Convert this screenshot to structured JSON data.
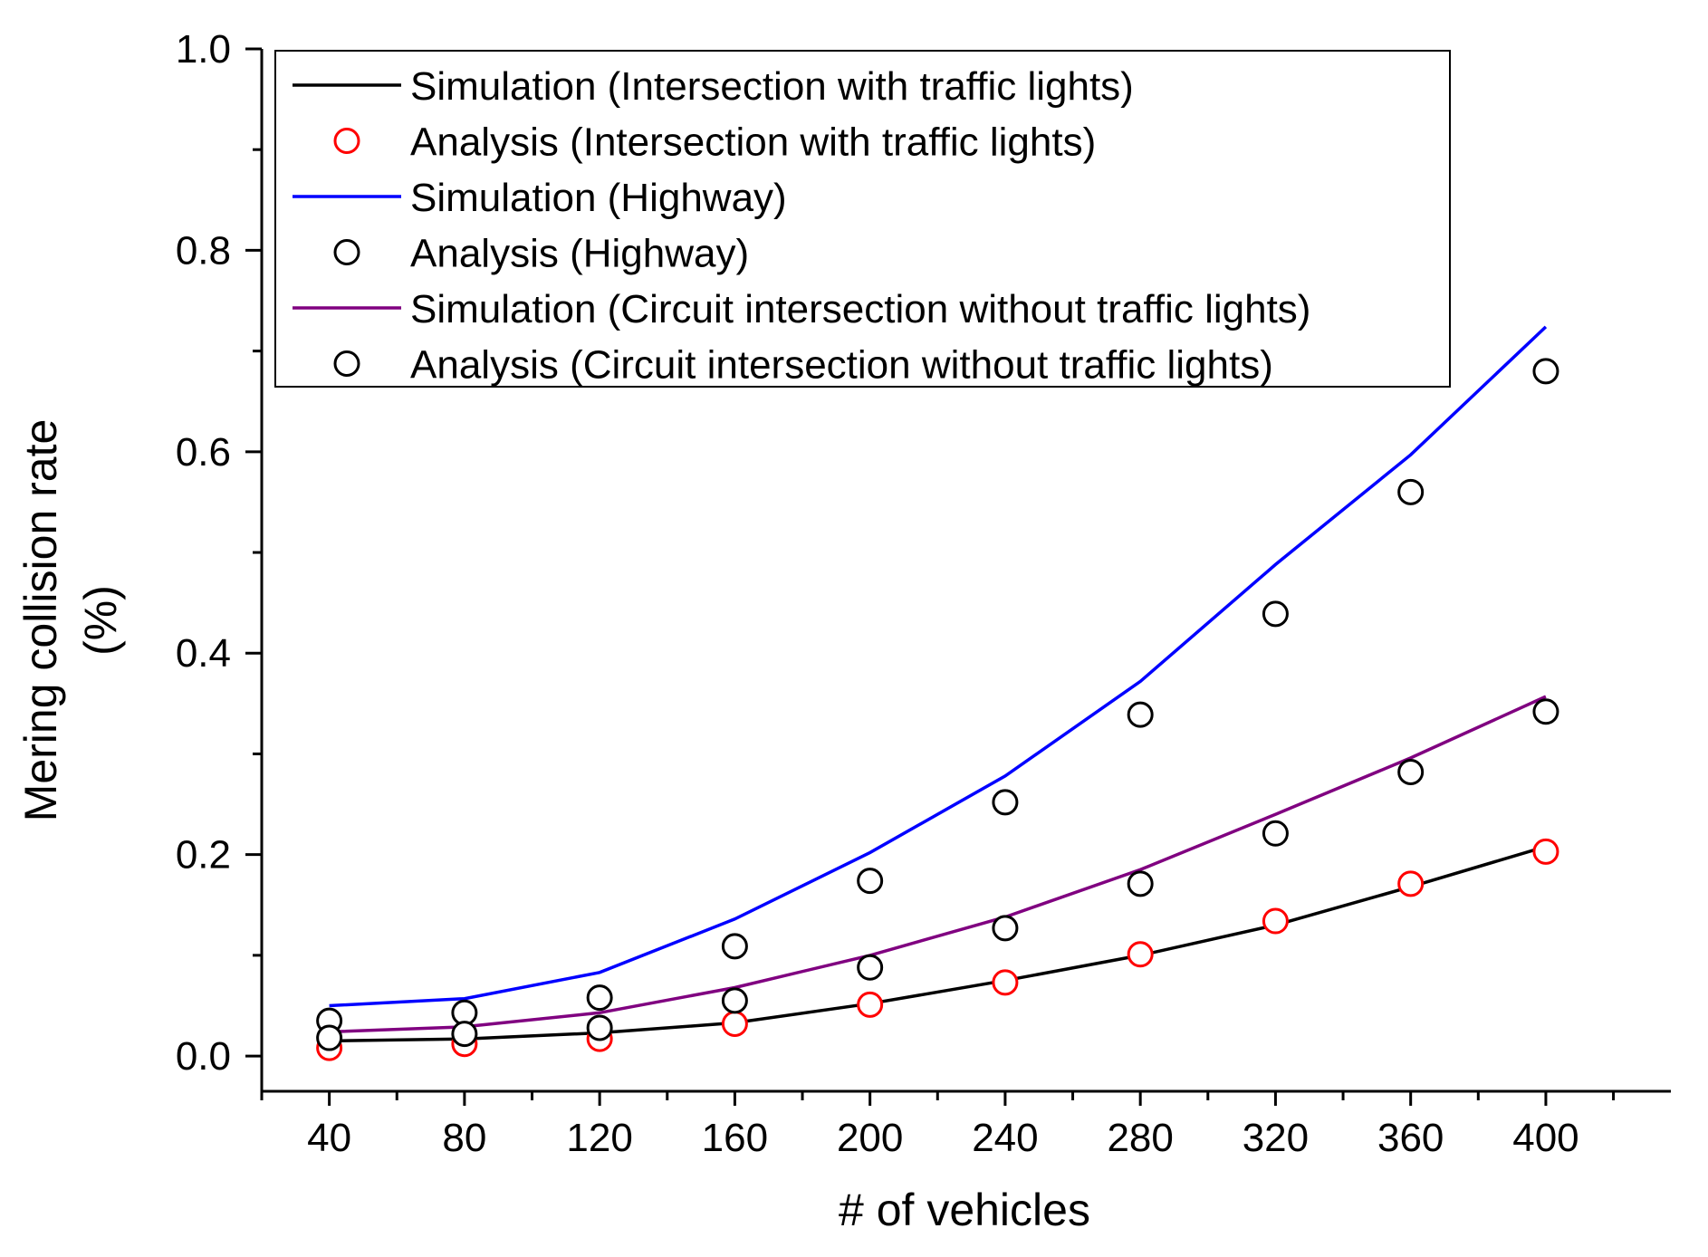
{
  "chart_data": {
    "type": "line",
    "title": "",
    "xlabel": "# of vehicles",
    "ylabel_line1": "Mering collision rate",
    "ylabel_line2": "(%)",
    "xlim": [
      20,
      437
    ],
    "ylim": [
      -0.035,
      1.0
    ],
    "x_ticks": [
      40,
      80,
      120,
      160,
      200,
      240,
      280,
      320,
      360,
      400
    ],
    "x_tick_labels": [
      "40",
      "80",
      "120",
      "160",
      "200",
      "240",
      "280",
      "320",
      "360",
      "400"
    ],
    "y_ticks": [
      0.0,
      0.2,
      0.4,
      0.6,
      0.8,
      1.0
    ],
    "y_tick_labels": [
      "0.0",
      "0.2",
      "0.4",
      "0.6",
      "0.8",
      "1.0"
    ],
    "grid": false,
    "legend_position": "top",
    "x": [
      40,
      80,
      120,
      160,
      200,
      240,
      280,
      320,
      360,
      400
    ],
    "series": [
      {
        "name": "Simulation (Intersection with traffic lights)",
        "kind": "line",
        "color": "#000000",
        "values": [
          0.015,
          0.017,
          0.023,
          0.033,
          0.052,
          0.075,
          0.1,
          0.13,
          0.168,
          0.208
        ]
      },
      {
        "name": "Analysis (Intersection with traffic lights)",
        "kind": "marker",
        "color": "#ff0000",
        "values": [
          0.008,
          0.012,
          0.017,
          0.032,
          0.051,
          0.073,
          0.101,
          0.134,
          0.171,
          0.203
        ]
      },
      {
        "name": "Simulation (Highway)",
        "kind": "line",
        "color": "#0000ff",
        "values": [
          0.05,
          0.057,
          0.083,
          0.136,
          0.202,
          0.278,
          0.372,
          0.488,
          0.597,
          0.724
        ]
      },
      {
        "name": "Analysis (Highway)",
        "kind": "marker",
        "color": "#000000",
        "values": [
          0.035,
          0.043,
          0.058,
          0.109,
          0.174,
          0.252,
          0.339,
          0.439,
          0.56,
          0.68
        ]
      },
      {
        "name": "Simulation (Circuit intersection without traffic lights)",
        "kind": "line",
        "color": "#800080",
        "values": [
          0.024,
          0.029,
          0.043,
          0.068,
          0.1,
          0.138,
          0.185,
          0.24,
          0.296,
          0.357
        ]
      },
      {
        "name": "Analysis (Circuit intersection without traffic lights)",
        "kind": "marker",
        "color": "#000000",
        "values": [
          0.018,
          0.022,
          0.028,
          0.055,
          0.088,
          0.127,
          0.171,
          0.221,
          0.282,
          0.342
        ]
      }
    ]
  }
}
